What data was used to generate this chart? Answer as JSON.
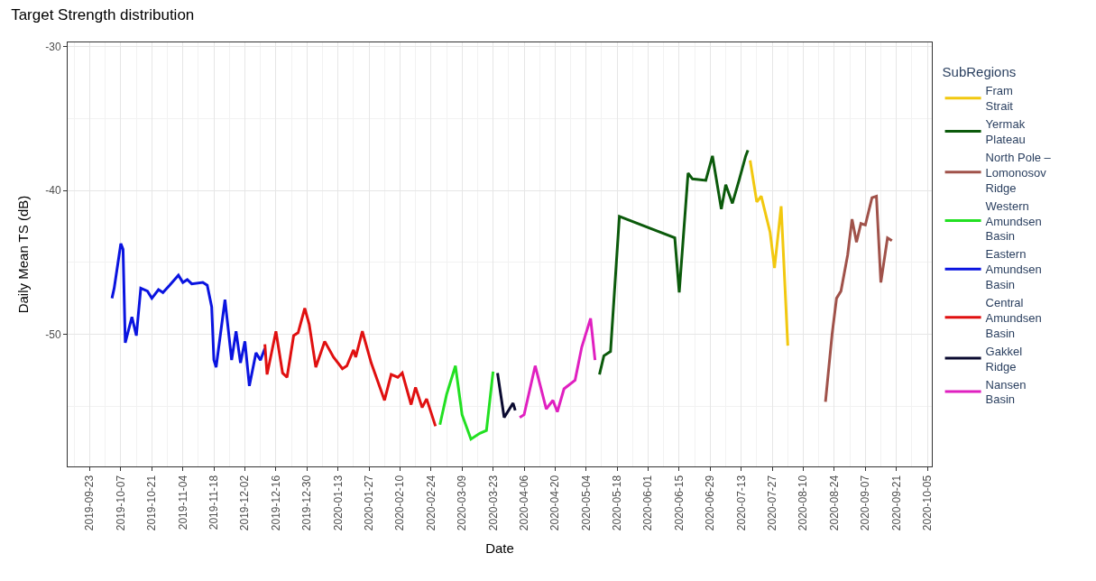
{
  "chart_data": {
    "type": "line",
    "title": "Target Strength distribution",
    "xlabel": "Date",
    "ylabel": "Daily Mean TS (dB)",
    "legend_title": "SubRegions",
    "legend": "right",
    "grid": true,
    "line_style": "solid",
    "marker": "none",
    "xlim": [
      "2019-09-13",
      "2020-10-07"
    ],
    "xticks": [
      "2019-09-23",
      "2019-10-07",
      "2019-10-21",
      "2019-11-04",
      "2019-11-18",
      "2019-12-02",
      "2019-12-16",
      "2019-12-30",
      "2020-01-13",
      "2020-01-27",
      "2020-02-10",
      "2020-02-24",
      "2020-03-09",
      "2020-03-23",
      "2020-04-06",
      "2020-04-20",
      "2020-05-04",
      "2020-05-18",
      "2020-06-01",
      "2020-06-15",
      "2020-06-29",
      "2020-07-13",
      "2020-07-27",
      "2020-08-10",
      "2020-08-24",
      "2020-09-07",
      "2020-09-21",
      "2020-10-05"
    ],
    "ylim": [
      -59.2,
      -29.7
    ],
    "yticks": [
      -30,
      -40,
      -50
    ],
    "series": [
      {
        "name": "Fram\nStrait",
        "color": "#f2c80f",
        "x": [
          "2020-07-17",
          "2020-07-20",
          "2020-07-22",
          "2020-07-26",
          "2020-07-28",
          "2020-07-31",
          "2020-08-03"
        ],
        "values": [
          -37.9,
          -40.8,
          -40.4,
          -42.9,
          -45.4,
          -41.1,
          -50.8
        ]
      },
      {
        "name": "Yermak\nPlateau",
        "color": "#0b5a0b",
        "x": [
          "2020-05-10",
          "2020-05-12",
          "2020-05-15",
          "2020-05-19",
          "2020-06-13",
          "2020-06-15",
          "2020-06-19",
          "2020-06-21",
          "2020-06-27",
          "2020-06-30",
          "2020-07-04",
          "2020-07-06",
          "2020-07-09",
          "2020-07-12",
          "2020-07-15",
          "2020-07-16"
        ],
        "values": [
          -52.8,
          -51.5,
          -51.2,
          -41.8,
          -43.3,
          -47.1,
          -38.8,
          -39.2,
          -39.3,
          -37.6,
          -41.3,
          -39.6,
          -40.9,
          -39.3,
          -37.6,
          -37.2
        ]
      },
      {
        "name": "North Pole –\nLomonosov\nRidge",
        "color": "#a0524a",
        "x": [
          "2020-08-20",
          "2020-08-23",
          "2020-08-25",
          "2020-08-27",
          "2020-08-30",
          "2020-09-01",
          "2020-09-03",
          "2020-09-05",
          "2020-09-07",
          "2020-09-10",
          "2020-09-12",
          "2020-09-14",
          "2020-09-17",
          "2020-09-19"
        ],
        "values": [
          -54.7,
          -50.0,
          -47.5,
          -47.0,
          -44.5,
          -42.0,
          -43.6,
          -42.3,
          -42.4,
          -40.5,
          -40.4,
          -46.4,
          -43.3,
          -43.5
        ]
      },
      {
        "name": "Western\nAmundsen\nBasin",
        "color": "#22e022",
        "x": [
          "2020-02-28",
          "2020-03-02",
          "2020-03-06",
          "2020-03-09",
          "2020-03-13",
          "2020-03-17",
          "2020-03-20",
          "2020-03-23"
        ],
        "values": [
          -56.3,
          -54.2,
          -52.2,
          -55.6,
          -57.3,
          -56.9,
          -56.7,
          -52.6
        ]
      },
      {
        "name": "Eastern\nAmundsen\nBasin",
        "color": "#0a14e0",
        "x": [
          "2019-10-03",
          "2019-10-04",
          "2019-10-07",
          "2019-10-08",
          "2019-10-09",
          "2019-10-12",
          "2019-10-14",
          "2019-10-16",
          "2019-10-19",
          "2019-10-21",
          "2019-10-24",
          "2019-10-26",
          "2019-10-29",
          "2019-11-02",
          "2019-11-04",
          "2019-11-06",
          "2019-11-08",
          "2019-11-13",
          "2019-11-15",
          "2019-11-17",
          "2019-11-18",
          "2019-11-19",
          "2019-11-23",
          "2019-11-26",
          "2019-11-28",
          "2019-11-30",
          "2019-12-02",
          "2019-12-04",
          "2019-12-07",
          "2019-12-09",
          "2019-12-11"
        ],
        "values": [
          -47.5,
          -46.8,
          -43.7,
          -44.1,
          -50.6,
          -48.8,
          -50.1,
          -46.8,
          -47.0,
          -47.5,
          -46.9,
          -47.1,
          -46.6,
          -45.9,
          -46.4,
          -46.2,
          -46.5,
          -46.4,
          -46.6,
          -48.1,
          -51.8,
          -52.3,
          -47.6,
          -51.8,
          -49.8,
          -52.0,
          -50.5,
          -53.6,
          -51.3,
          -51.8,
          -51.0
        ]
      },
      {
        "name": "Central\nAmundsen\nBasin",
        "color": "#e01010",
        "x": [
          "2019-12-11",
          "2019-12-12",
          "2019-12-16",
          "2019-12-19",
          "2019-12-21",
          "2019-12-24",
          "2019-12-26",
          "2019-12-29",
          "2019-12-31",
          "2020-01-03",
          "2020-01-07",
          "2020-01-11",
          "2020-01-15",
          "2020-01-17",
          "2020-01-20",
          "2020-01-21",
          "2020-01-24",
          "2020-01-28",
          "2020-02-03",
          "2020-02-06",
          "2020-02-09",
          "2020-02-11",
          "2020-02-15",
          "2020-02-17",
          "2020-02-20",
          "2020-02-22",
          "2020-02-26"
        ],
        "values": [
          -50.7,
          -52.8,
          -49.8,
          -52.7,
          -53.0,
          -50.1,
          -49.9,
          -48.2,
          -49.3,
          -52.3,
          -50.5,
          -51.6,
          -52.4,
          -52.2,
          -51.1,
          -51.6,
          -49.8,
          -52.0,
          -54.6,
          -52.8,
          -53.0,
          -52.7,
          -54.9,
          -53.7,
          -55.1,
          -54.5,
          -56.4
        ]
      },
      {
        "name": "Gakkel\nRidge",
        "color": "#0a0a30",
        "x": [
          "2020-03-25",
          "2020-03-28",
          "2020-04-01",
          "2020-04-02"
        ],
        "values": [
          -52.7,
          -55.8,
          -54.8,
          -55.3
        ]
      },
      {
        "name": "Nansen\nBasin",
        "color": "#e020c0",
        "x": [
          "2020-04-04",
          "2020-04-06",
          "2020-04-11",
          "2020-04-16",
          "2020-04-19",
          "2020-04-21",
          "2020-04-24",
          "2020-04-29",
          "2020-05-02",
          "2020-05-06",
          "2020-05-08"
        ],
        "values": [
          -55.8,
          -55.6,
          -52.2,
          -55.2,
          -54.6,
          -55.4,
          -53.8,
          -53.2,
          -50.9,
          -48.9,
          -51.8
        ]
      }
    ]
  }
}
